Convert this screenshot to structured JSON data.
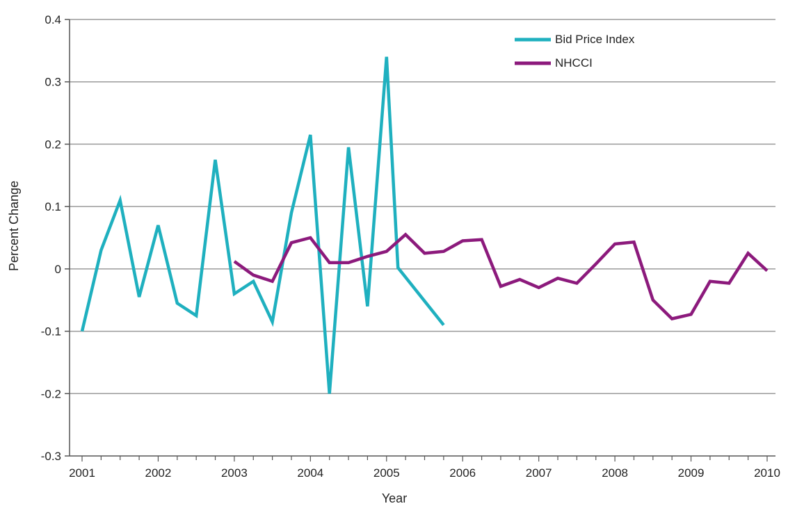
{
  "chart_data": {
    "type": "line",
    "title": "",
    "xlabel": "Year",
    "ylabel": "Percent Change",
    "xlim": [
      2001,
      2010
    ],
    "ylim": [
      -0.3,
      0.4
    ],
    "x_ticks": [
      2001,
      2002,
      2003,
      2004,
      2005,
      2006,
      2007,
      2008,
      2009,
      2010
    ],
    "x_tick_labels": [
      "2001",
      "2002",
      "2003",
      "2004",
      "2005",
      "2006",
      "2007",
      "2008",
      "2009",
      "2010"
    ],
    "y_ticks": [
      -0.3,
      -0.2,
      -0.1,
      0,
      0.1,
      0.2,
      0.3,
      0.4
    ],
    "y_tick_labels": [
      "-0.3",
      "-0.2",
      "-0.1",
      "0",
      "0.1",
      "0.2",
      "0.3",
      "0.4"
    ],
    "grid": "horizontal",
    "legend_position": "top-right",
    "series": [
      {
        "name": "Bid Price Index",
        "color": "#1fb0bf",
        "x": [
          2001.0,
          2001.25,
          2001.5,
          2001.75,
          2002.0,
          2002.25,
          2002.5,
          2002.75,
          2003.0,
          2003.25,
          2003.5,
          2003.75,
          2004.0,
          2004.25,
          2004.5,
          2004.75,
          2005.0,
          2005.15,
          2005.75
        ],
        "y": [
          -0.1,
          0.03,
          0.11,
          -0.045,
          0.07,
          -0.055,
          -0.075,
          0.175,
          -0.04,
          -0.02,
          -0.085,
          0.09,
          0.215,
          -0.2,
          0.195,
          -0.06,
          0.34,
          0.002,
          -0.09
        ]
      },
      {
        "name": "NHCCI",
        "color": "#8c1a7c",
        "x": [
          2003.0,
          2003.25,
          2003.5,
          2003.75,
          2004.0,
          2004.25,
          2004.5,
          2004.75,
          2005.0,
          2005.25,
          2005.5,
          2005.75,
          2006.0,
          2006.25,
          2006.5,
          2006.75,
          2007.0,
          2007.25,
          2007.5,
          2007.75,
          2008.0,
          2008.25,
          2008.5,
          2008.75,
          2009.0,
          2009.25,
          2009.5,
          2009.75,
          2010.0
        ],
        "y": [
          0.012,
          -0.01,
          -0.02,
          0.042,
          0.05,
          0.01,
          0.01,
          0.02,
          0.028,
          0.055,
          0.025,
          0.028,
          0.045,
          0.047,
          -0.028,
          -0.017,
          -0.03,
          -0.015,
          -0.023,
          0.008,
          0.04,
          0.043,
          -0.05,
          -0.08,
          -0.073,
          -0.02,
          -0.023,
          0.025,
          -0.003
        ]
      }
    ]
  }
}
